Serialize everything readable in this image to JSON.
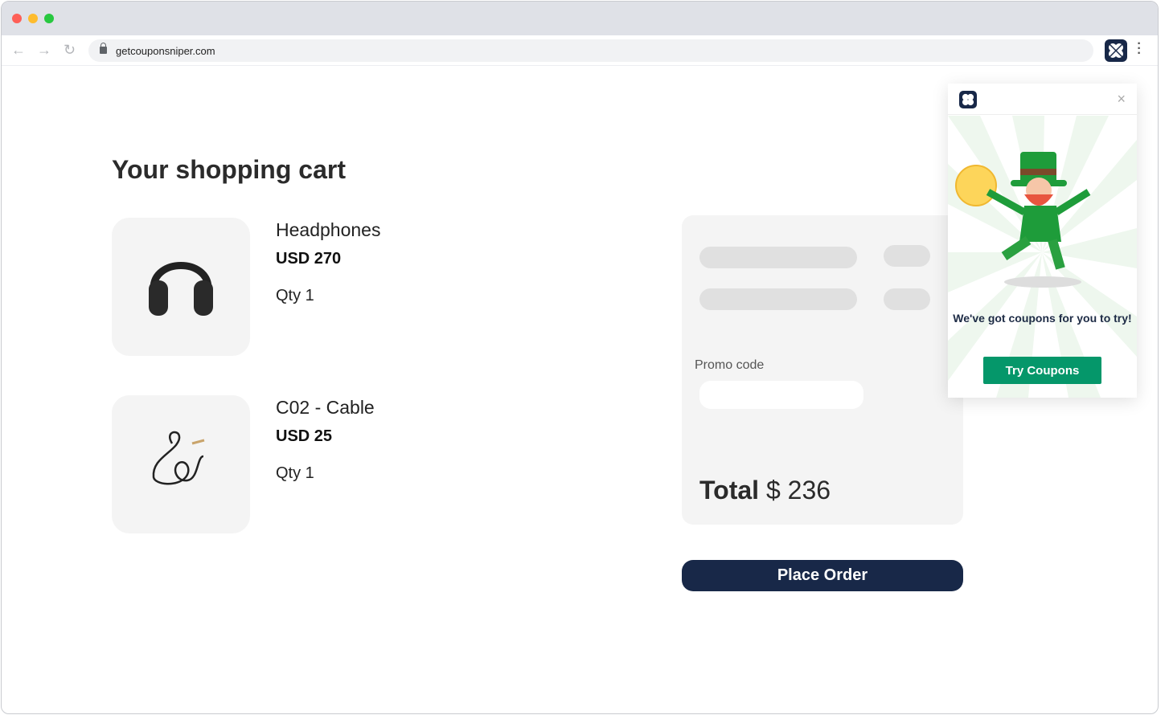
{
  "browser": {
    "url": "getcouponsniper.com"
  },
  "page": {
    "title": "Your shopping cart"
  },
  "cart": [
    {
      "name": "Headphones",
      "price": "USD 270",
      "qty": "Qty 1"
    },
    {
      "name": "C02 - Cable",
      "price": "USD 25",
      "qty": "Qty 1"
    }
  ],
  "summary": {
    "promo_label": "Promo code",
    "promo_value": "",
    "total_label": "Total",
    "total_value": "$ 236"
  },
  "place_order": "Place Order",
  "popup": {
    "close": "×",
    "message": "We've got coupons for you to try!",
    "button": "Try Coupons"
  },
  "colors": {
    "brand": "#182848",
    "accent": "#05976a"
  }
}
